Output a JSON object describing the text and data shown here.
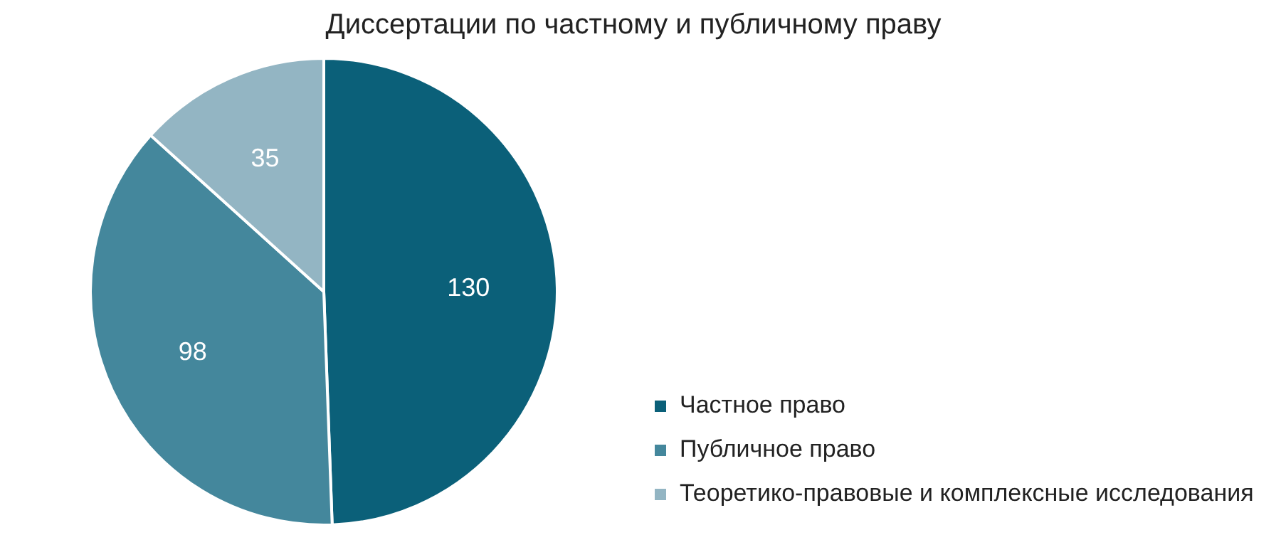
{
  "chart_data": {
    "type": "pie",
    "title": "Диссертации по частному и публичному праву",
    "categories": [
      "Частное право",
      "Публичное право",
      "Теоретико-правовые и комплексные исследования"
    ],
    "values": [
      130,
      98,
      35
    ],
    "colors": [
      "#0b6079",
      "#44879c",
      "#93b5c3"
    ],
    "data_labels": true,
    "legend": "bottom right"
  }
}
